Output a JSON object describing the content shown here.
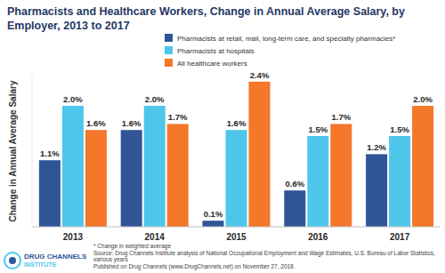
{
  "chart_data": {
    "type": "bar",
    "title": "Pharmacists and Healthcare Workers, Change in Annual Average Salary, by Employer, 2013 to 2017",
    "y_label": "Change in Annual Average Salary",
    "categories": [
      "2013",
      "2014",
      "2015",
      "2016",
      "2017"
    ],
    "series": [
      {
        "name": "Pharmacists at retail, mail, long-term care, and specialty pharmacies*",
        "color": "#2f5597",
        "values": [
          1.1,
          1.6,
          0.1,
          0.6,
          1.2
        ],
        "value_labels": [
          "1.1%",
          "1.6%",
          "0.1%",
          "0.6%",
          "1.2%"
        ]
      },
      {
        "name": "Pharmacists at hospitals",
        "color": "#4ec6ec",
        "values": [
          2.0,
          2.0,
          1.6,
          1.5,
          1.5
        ],
        "value_labels": [
          "2.0%",
          "2.0%",
          "1.6%",
          "1.5%",
          "1.5%"
        ]
      },
      {
        "name": "All healthcare workers",
        "color": "#f4772a",
        "values": [
          1.6,
          1.7,
          2.4,
          1.7,
          2.0
        ],
        "value_labels": [
          "1.6%",
          "1.7%",
          "2.4%",
          "1.7%",
          "2.0%"
        ]
      }
    ],
    "ylim": [
      0,
      2.5
    ],
    "grid": false,
    "legend": "top",
    "data_labels": true,
    "tick_labels": "x",
    "annotations": [
      "* Change in weighted average",
      "Source: Drug Channels Institute analysis of National Occupational Employment and Wage Estimates, U.S. Bureau of Labor Statistics, various years",
      "Published on Drug Channels (www.DrugChannels.net) on November 27, 2018."
    ],
    "logo": [
      "DRUG CHANNELS",
      "INSTITUTE"
    ]
  }
}
